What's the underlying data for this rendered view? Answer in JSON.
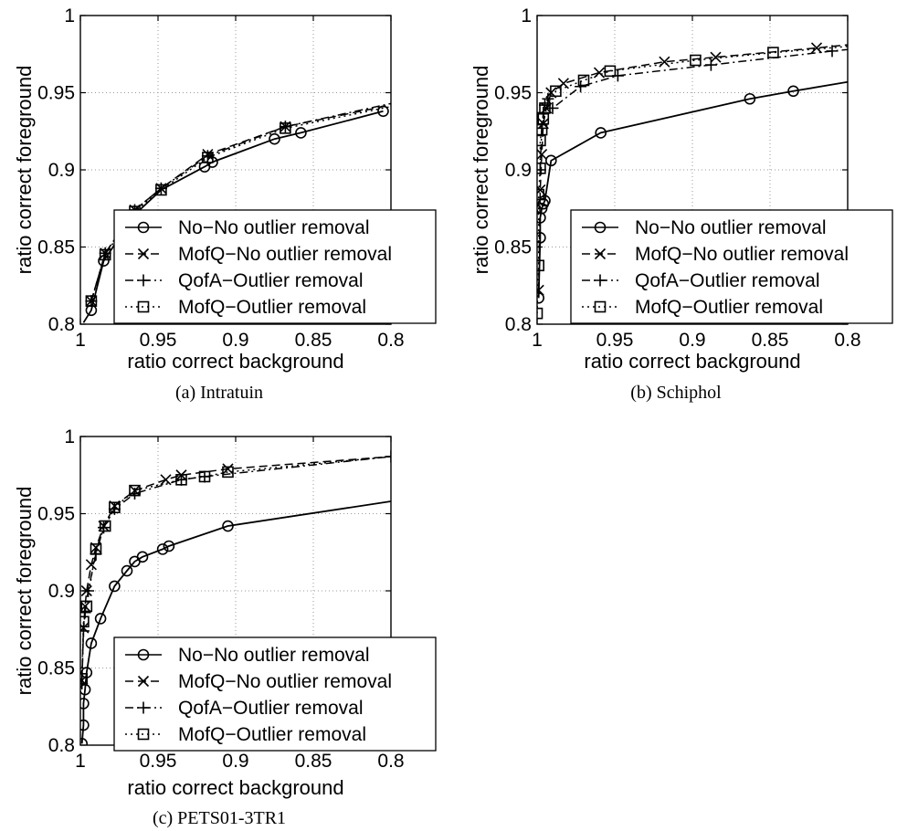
{
  "figure": {
    "legend_labels": [
      "No−No outlier removal",
      "MofQ−No outlier removal",
      "QofA−Outlier removal",
      "MofQ−Outlier removal"
    ]
  },
  "chart_data": [
    {
      "type": "line",
      "caption": "(a) Intratuin",
      "xlabel": "ratio correct background",
      "ylabel": "ratio correct foreground",
      "xlim": [
        1,
        0.8
      ],
      "ylim": [
        0.8,
        1
      ],
      "x_reversed": true,
      "xticks": [
        "1",
        "0.95",
        "0.9",
        "0.85",
        "0.8"
      ],
      "yticks": [
        "0.8",
        "0.85",
        "0.9",
        "0.95",
        "1"
      ],
      "grid": true,
      "legend_position": "bottom-right",
      "series": [
        {
          "name": "No−No outlier removal",
          "marker": "circle",
          "dash": "solid",
          "x": [
            0.998,
            0.993,
            0.985,
            0.965,
            0.948,
            0.92,
            0.915,
            0.875,
            0.858,
            0.805
          ],
          "y": [
            0.801,
            0.809,
            0.841,
            0.871,
            0.887,
            0.902,
            0.905,
            0.92,
            0.924,
            0.938
          ],
          "markers_x": [
            0.993,
            0.985,
            0.92,
            0.915,
            0.875,
            0.858,
            0.805
          ],
          "markers_y": [
            0.809,
            0.841,
            0.902,
            0.905,
            0.92,
            0.924,
            0.938
          ]
        },
        {
          "name": "MofQ−No outlier removal",
          "marker": "x",
          "dash": "dashed",
          "x": [
            0.993,
            0.984,
            0.965,
            0.948,
            0.918,
            0.868,
            0.8
          ],
          "y": [
            0.815,
            0.846,
            0.874,
            0.888,
            0.91,
            0.928,
            0.942
          ],
          "markers_x": [
            0.993,
            0.984,
            0.965,
            0.948,
            0.918,
            0.868
          ],
          "markers_y": [
            0.815,
            0.846,
            0.874,
            0.888,
            0.91,
            0.928
          ]
        },
        {
          "name": "QofA−Outlier removal",
          "marker": "plus",
          "dash": "dashdot",
          "x": [
            0.993,
            0.984,
            0.965,
            0.948,
            0.918,
            0.868,
            0.8
          ],
          "y": [
            0.815,
            0.846,
            0.874,
            0.888,
            0.909,
            0.928,
            0.943
          ],
          "markers_x": [
            0.993,
            0.984,
            0.965,
            0.948,
            0.918,
            0.868
          ],
          "markers_y": [
            0.815,
            0.846,
            0.874,
            0.888,
            0.909,
            0.928
          ]
        },
        {
          "name": "MofQ−Outlier removal",
          "marker": "square",
          "dash": "dotted",
          "x": [
            0.993,
            0.984,
            0.965,
            0.948,
            0.918,
            0.868,
            0.8
          ],
          "y": [
            0.815,
            0.845,
            0.873,
            0.887,
            0.908,
            0.927,
            0.941
          ],
          "markers_x": [
            0.993,
            0.984,
            0.965,
            0.948,
            0.918,
            0.868
          ],
          "markers_y": [
            0.815,
            0.845,
            0.873,
            0.887,
            0.908,
            0.927
          ]
        }
      ]
    },
    {
      "type": "line",
      "caption": "(b) Schiphol",
      "xlabel": "ratio correct background",
      "ylabel": "ratio correct foreground",
      "xlim": [
        1,
        0.8
      ],
      "ylim": [
        0.8,
        1
      ],
      "x_reversed": true,
      "xticks": [
        "1",
        "0.95",
        "0.9",
        "0.85",
        "0.8"
      ],
      "yticks": [
        "0.8",
        "0.85",
        "0.9",
        "0.95",
        "1"
      ],
      "grid": true,
      "legend_position": "bottom-right",
      "series": [
        {
          "name": "No−No outlier removal",
          "marker": "circle",
          "dash": "solid",
          "x": [
            0.999,
            0.998,
            0.998,
            0.997,
            0.996,
            0.995,
            0.991,
            0.959,
            0.863,
            0.835,
            0.8
          ],
          "y": [
            0.817,
            0.856,
            0.869,
            0.875,
            0.878,
            0.88,
            0.906,
            0.924,
            0.946,
            0.951,
            0.957
          ],
          "markers_x": [
            0.999,
            0.998,
            0.998,
            0.997,
            0.996,
            0.995,
            0.991,
            0.959,
            0.863,
            0.835
          ],
          "markers_y": [
            0.817,
            0.856,
            0.869,
            0.875,
            0.878,
            0.88,
            0.906,
            0.924,
            0.946,
            0.951
          ]
        },
        {
          "name": "MofQ−No outlier removal",
          "marker": "x",
          "dash": "dashed",
          "x": [
            0.999,
            0.998,
            0.997,
            0.996,
            0.994,
            0.991,
            0.983,
            0.96,
            0.918,
            0.885,
            0.82,
            0.8
          ],
          "y": [
            0.822,
            0.887,
            0.91,
            0.93,
            0.94,
            0.95,
            0.956,
            0.963,
            0.97,
            0.973,
            0.979,
            0.981
          ],
          "markers_x": [
            0.999,
            0.998,
            0.997,
            0.996,
            0.994,
            0.991,
            0.983,
            0.96,
            0.918,
            0.885,
            0.82
          ],
          "markers_y": [
            0.822,
            0.887,
            0.91,
            0.93,
            0.94,
            0.95,
            0.956,
            0.963,
            0.97,
            0.973,
            0.979
          ]
        },
        {
          "name": "QofA−Outlier removal",
          "marker": "plus",
          "dash": "dashdot",
          "x": [
            0.998,
            0.997,
            0.996,
            0.995,
            0.993,
            0.99,
            0.972,
            0.948,
            0.888,
            0.81,
            0.8
          ],
          "y": [
            0.9,
            0.927,
            0.937,
            0.942,
            0.946,
            0.94,
            0.954,
            0.961,
            0.968,
            0.977,
            0.978
          ],
          "markers_x": [
            0.998,
            0.997,
            0.996,
            0.995,
            0.993,
            0.99,
            0.972,
            0.948,
            0.888,
            0.81
          ],
          "markers_y": [
            0.9,
            0.927,
            0.937,
            0.942,
            0.946,
            0.94,
            0.954,
            0.961,
            0.968,
            0.977
          ]
        },
        {
          "name": "MofQ−Outlier removal",
          "marker": "square",
          "dash": "dotted",
          "x": [
            1.0,
            0.999,
            0.999,
            0.998,
            0.998,
            0.997,
            0.996,
            0.995,
            0.988,
            0.97,
            0.953,
            0.898,
            0.848,
            0.8
          ],
          "y": [
            0.807,
            0.838,
            0.884,
            0.901,
            0.919,
            0.926,
            0.933,
            0.94,
            0.951,
            0.958,
            0.964,
            0.971,
            0.976,
            0.98
          ],
          "markers_x": [
            1.0,
            0.999,
            0.999,
            0.998,
            0.998,
            0.997,
            0.996,
            0.995,
            0.988,
            0.97,
            0.953,
            0.898,
            0.848
          ],
          "markers_y": [
            0.807,
            0.838,
            0.884,
            0.901,
            0.919,
            0.926,
            0.933,
            0.94,
            0.951,
            0.958,
            0.964,
            0.971,
            0.976
          ]
        }
      ]
    },
    {
      "type": "line",
      "caption": "(c) PETS01-3TR1",
      "xlabel": "ratio correct background",
      "ylabel": "ratio correct foreground",
      "xlim": [
        1,
        0.8
      ],
      "ylim": [
        0.8,
        1
      ],
      "x_reversed": true,
      "xticks": [
        "1",
        "0.95",
        "0.9",
        "0.85",
        "0.8"
      ],
      "yticks": [
        "0.8",
        "0.85",
        "0.9",
        "0.95",
        "1"
      ],
      "grid": true,
      "legend_position": "bottom-right",
      "series": [
        {
          "name": "No−No outlier removal",
          "marker": "circle",
          "dash": "solid",
          "x": [
            0.999,
            0.998,
            0.998,
            0.997,
            0.996,
            0.993,
            0.987,
            0.978,
            0.97,
            0.965,
            0.96,
            0.947,
            0.943,
            0.905,
            0.8
          ],
          "y": [
            0.801,
            0.813,
            0.827,
            0.836,
            0.847,
            0.866,
            0.882,
            0.903,
            0.913,
            0.919,
            0.922,
            0.927,
            0.929,
            0.942,
            0.958
          ],
          "markers_x": [
            0.999,
            0.998,
            0.998,
            0.997,
            0.996,
            0.993,
            0.987,
            0.978,
            0.97,
            0.965,
            0.96,
            0.947,
            0.943,
            0.905
          ],
          "markers_y": [
            0.801,
            0.813,
            0.827,
            0.836,
            0.847,
            0.866,
            0.882,
            0.903,
            0.913,
            0.919,
            0.922,
            0.927,
            0.929,
            0.942
          ]
        },
        {
          "name": "MofQ−No outlier removal",
          "marker": "x",
          "dash": "dashed",
          "x": [
            0.999,
            0.998,
            0.997,
            0.996,
            0.993,
            0.99,
            0.985,
            0.978,
            0.965,
            0.945,
            0.935,
            0.905,
            0.8
          ],
          "y": [
            0.842,
            0.876,
            0.89,
            0.9,
            0.917,
            0.928,
            0.942,
            0.955,
            0.965,
            0.972,
            0.975,
            0.979,
            0.987
          ],
          "markers_x": [
            0.999,
            0.998,
            0.997,
            0.996,
            0.993,
            0.99,
            0.985,
            0.978,
            0.965,
            0.945,
            0.935,
            0.905
          ],
          "markers_y": [
            0.842,
            0.876,
            0.89,
            0.9,
            0.917,
            0.928,
            0.942,
            0.955,
            0.965,
            0.972,
            0.975,
            0.979
          ]
        },
        {
          "name": "QofA−Outlier removal",
          "marker": "plus",
          "dash": "dashdot",
          "x": [
            0.999,
            0.998,
            0.997,
            0.995,
            0.99,
            0.985,
            0.978,
            0.965,
            0.935,
            0.92,
            0.8
          ],
          "y": [
            0.84,
            0.874,
            0.886,
            0.9,
            0.924,
            0.941,
            0.953,
            0.963,
            0.972,
            0.974,
            0.987
          ],
          "markers_x": [
            0.999,
            0.998,
            0.997,
            0.995,
            0.99,
            0.985,
            0.978,
            0.965,
            0.935,
            0.92,
            0.8
          ],
          "markers_y": [
            0.84,
            0.874,
            0.886,
            0.9,
            0.924,
            0.941,
            0.953,
            0.963,
            0.972,
            0.974,
            0.987
          ]
        },
        {
          "name": "MofQ−Outlier removal",
          "marker": "square",
          "dash": "dotted",
          "x": [
            0.999,
            0.998,
            0.996,
            0.99,
            0.984,
            0.978,
            0.965,
            0.935,
            0.92,
            0.905,
            0.8
          ],
          "y": [
            0.843,
            0.88,
            0.89,
            0.927,
            0.942,
            0.954,
            0.965,
            0.972,
            0.974,
            0.977,
            0.987
          ],
          "markers_x": [
            0.999,
            0.998,
            0.996,
            0.99,
            0.984,
            0.978,
            0.965,
            0.935,
            0.92,
            0.905
          ],
          "markers_y": [
            0.843,
            0.88,
            0.89,
            0.927,
            0.942,
            0.954,
            0.965,
            0.972,
            0.974,
            0.977
          ]
        }
      ]
    }
  ]
}
